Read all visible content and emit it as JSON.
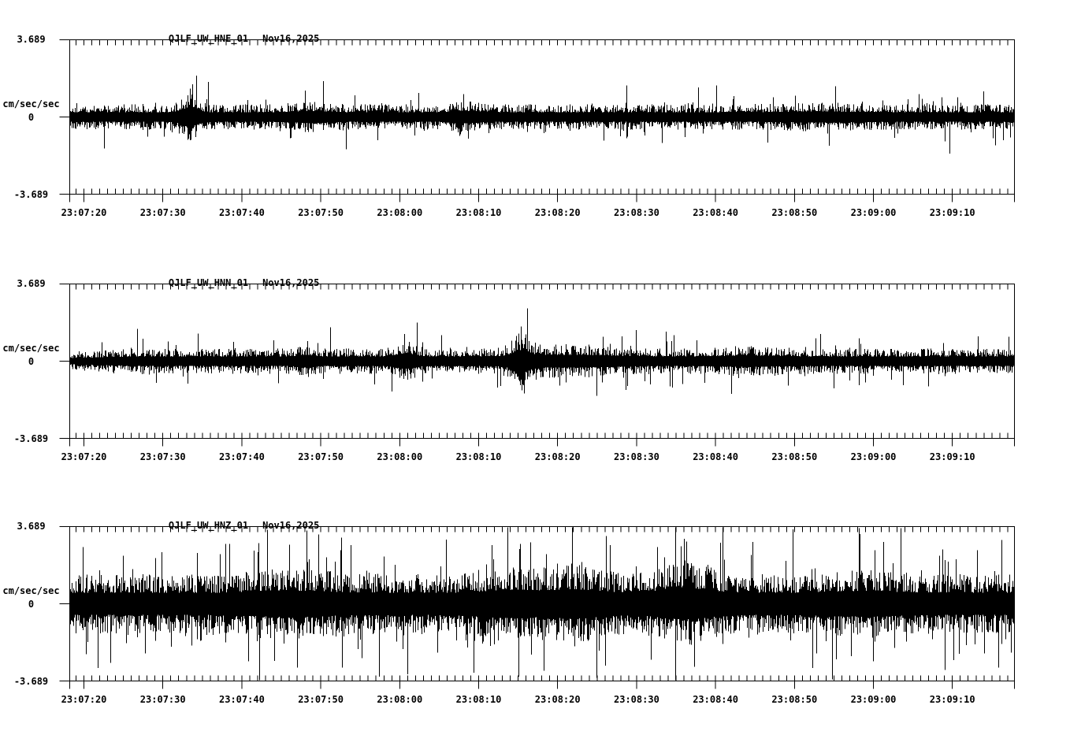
{
  "display": {
    "background_color": "#ffffff",
    "trace_color": "#000000"
  },
  "chart_data": [
    {
      "type": "line",
      "subtype": "seismogram",
      "title": "QJLF_UW_HNE_01",
      "date_label": "Nov16,2025",
      "ylabel": "cm/sec/sec",
      "ylim": [
        -3.689,
        3.689
      ],
      "ytick_labels": [
        "3.689",
        "0",
        "-3.689"
      ],
      "xtick_labels": [
        "23:07:20",
        "23:07:30",
        "23:07:40",
        "23:07:50",
        "23:08:00",
        "23:08:10",
        "23:08:20",
        "23:08:30",
        "23:08:40",
        "23:08:50",
        "23:09:00",
        "23:09:10"
      ],
      "x_start": "23:07:18",
      "x_end": "23:09:18",
      "major_tick_interval_seconds": 10,
      "minor_tick_interval_seconds": 1,
      "grid": false,
      "legend": false,
      "waveform": {
        "seed": 101,
        "noise_amplitude_units": 0.45,
        "sharpness": 2.0,
        "spike_probability": 0.055,
        "spike_gain": 2.0,
        "bursts": [
          {
            "t": 15.2,
            "gain": 1.9,
            "width": 1.0
          },
          {
            "t": 30.5,
            "gain": 1.25,
            "width": 2.0
          },
          {
            "t": 50.0,
            "gain": 1.3,
            "width": 1.5
          },
          {
            "t": 95.0,
            "gain": 1.15,
            "width": 4.0
          }
        ],
        "tall_spikes": [
          {
            "t": 15.3,
            "amp": 1.35
          },
          {
            "t": 49.9,
            "amp": 1.1
          },
          {
            "t": 111.5,
            "amp": -1.75
          }
        ]
      }
    },
    {
      "type": "line",
      "subtype": "seismogram",
      "title": "QJLF_UW_HNN_01",
      "date_label": "Nov16,2025",
      "ylabel": "cm/sec/sec",
      "ylim": [
        -3.689,
        3.689
      ],
      "ytick_labels": [
        "3.689",
        "0",
        "-3.689"
      ],
      "xtick_labels": [
        "23:07:20",
        "23:07:30",
        "23:07:40",
        "23:07:50",
        "23:08:00",
        "23:08:10",
        "23:08:20",
        "23:08:30",
        "23:08:40",
        "23:08:50",
        "23:09:00",
        "23:09:10"
      ],
      "x_start": "23:07:18",
      "x_end": "23:09:18",
      "major_tick_interval_seconds": 10,
      "minor_tick_interval_seconds": 1,
      "grid": false,
      "legend": false,
      "waveform": {
        "seed": 202,
        "noise_amplitude_units": 0.45,
        "sharpness": 2.0,
        "spike_probability": 0.055,
        "spike_gain": 2.0,
        "start_ramp": {
          "t": 8,
          "gain": 0.65
        },
        "bursts": [
          {
            "t": 29.8,
            "gain": 1.35,
            "width": 0.8
          },
          {
            "t": 42.5,
            "gain": 1.6,
            "width": 1.2
          },
          {
            "t": 57.2,
            "gain": 2.2,
            "width": 1.0
          },
          {
            "t": 63.0,
            "gain": 1.35,
            "width": 5.0
          },
          {
            "t": 86.0,
            "gain": 1.2,
            "width": 3.0
          }
        ],
        "tall_spikes": [
          {
            "t": 42.4,
            "amp": 1.3
          },
          {
            "t": 57.2,
            "amp": 1.65
          },
          {
            "t": 57.6,
            "amp": -1.55
          },
          {
            "t": 76.0,
            "amp": -1.2
          }
        ]
      }
    },
    {
      "type": "line",
      "subtype": "seismogram",
      "title": "QJLF_UW_HNZ_01",
      "date_label": "Nov16,2025",
      "ylabel": "cm/sec/sec",
      "ylim": [
        -3.689,
        3.689
      ],
      "ytick_labels": [
        "3.689",
        "0",
        "-3.689"
      ],
      "xtick_labels": [
        "23:07:20",
        "23:07:30",
        "23:07:40",
        "23:07:50",
        "23:08:00",
        "23:08:10",
        "23:08:20",
        "23:08:30",
        "23:08:40",
        "23:08:50",
        "23:09:00",
        "23:09:10"
      ],
      "x_start": "23:07:18",
      "x_end": "23:09:18",
      "major_tick_interval_seconds": 10,
      "minor_tick_interval_seconds": 1,
      "grid": false,
      "legend": false,
      "waveform": {
        "seed": 303,
        "noise_amplitude_units": 1.05,
        "sharpness": 1.6,
        "spike_probability": 0.1,
        "spike_gain": 1.9,
        "bursts": [
          {
            "t": 28.0,
            "gain": 1.2,
            "width": 4.0
          },
          {
            "t": 56.0,
            "gain": 1.25,
            "width": 3.0
          },
          {
            "t": 64.0,
            "gain": 1.3,
            "width": 3.0
          },
          {
            "t": 78.0,
            "gain": 1.4,
            "width": 3.0
          },
          {
            "t": 100.0,
            "gain": 1.15,
            "width": 4.0
          }
        ],
        "tall_spikes": [
          {
            "t": 6.8,
            "amp": 2.3
          },
          {
            "t": 24.0,
            "amp": 2.9
          },
          {
            "t": 37.0,
            "amp": -2.6
          },
          {
            "t": 51.2,
            "amp": -3.3
          },
          {
            "t": 60.1,
            "amp": -3.2
          },
          {
            "t": 68.5,
            "amp": 2.8
          },
          {
            "t": 77.8,
            "amp": 3.1
          },
          {
            "t": 91.6,
            "amp": 3.55
          },
          {
            "t": 112.0,
            "amp": -2.7
          }
        ]
      }
    }
  ]
}
